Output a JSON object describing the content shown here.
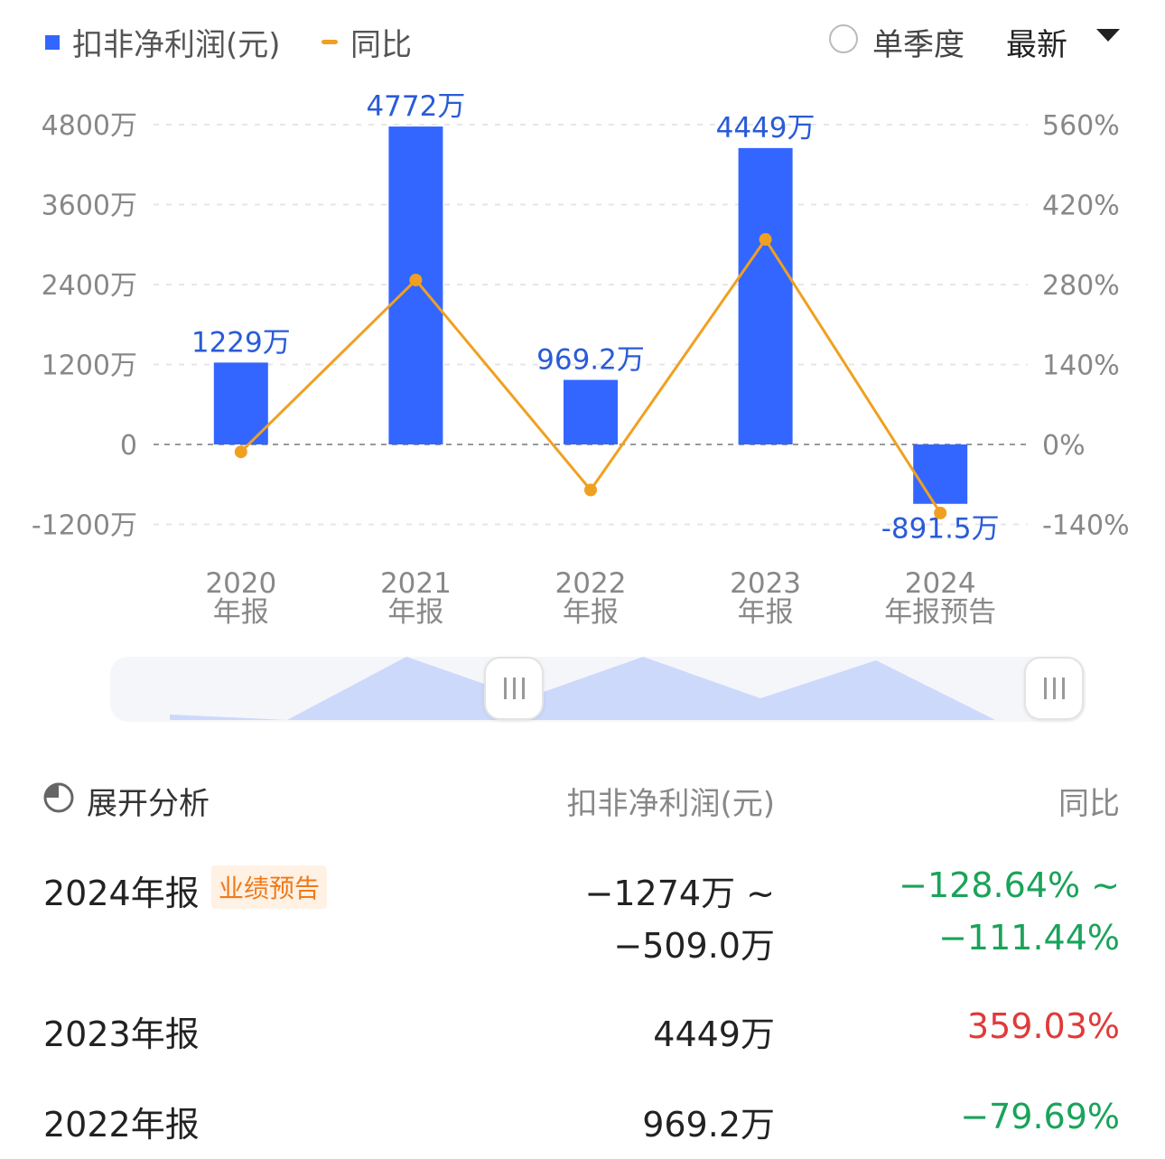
{
  "legend": {
    "bar_label": "扣非净利润(元)",
    "line_label": "同比",
    "bar_color": "#3366ff",
    "line_color": "#f0a020"
  },
  "controls": {
    "radio_label": "单季度",
    "radio_checked": false,
    "dropdown_value": "最新"
  },
  "chart_data": {
    "type": "bar",
    "categories": [
      [
        "2020",
        "年报"
      ],
      [
        "2021",
        "年报"
      ],
      [
        "2022",
        "年报"
      ],
      [
        "2023",
        "年报"
      ],
      [
        "2024",
        "年报预告"
      ]
    ],
    "series": [
      {
        "type": "bar",
        "axis": "left",
        "values": [
          1229,
          4772,
          969.2,
          4449,
          -891.5
        ],
        "data_labels": [
          "1229万",
          "4772万",
          "969.2万",
          "4449万",
          "-891.5万"
        ]
      },
      {
        "type": "line",
        "axis": "right",
        "values": [
          -13,
          288,
          -79.69,
          359.03,
          -120.04
        ]
      }
    ],
    "y_left": {
      "ticks": [
        4800,
        3600,
        2400,
        1200,
        0,
        -1200
      ],
      "tick_labels": [
        "4800万",
        "3600万",
        "2400万",
        "1200万",
        "0",
        "-1200万"
      ],
      "range": [
        -1200,
        4800
      ]
    },
    "y_right": {
      "ticks": [
        560,
        420,
        280,
        140,
        0,
        -140
      ],
      "tick_labels": [
        "560%",
        "420%",
        "280%",
        "140%",
        "0%",
        "-140%"
      ],
      "range": [
        -140,
        560
      ]
    },
    "grid": true
  },
  "table": {
    "expand_label": "展开分析",
    "col_value": "扣非净利润(元)",
    "col_yoy": "同比",
    "rows": [
      {
        "label": "2024年报",
        "tag": "业绩预告",
        "value_line1": "−1274万 ~",
        "value_line2": "−509.0万",
        "yoy_line1": "−128.64% ~",
        "yoy_line2": "−111.44%"
      },
      {
        "label": "2023年报",
        "value": "4449万",
        "yoy": "359.03%"
      },
      {
        "label": "2022年报",
        "value": "969.2万",
        "yoy": "−79.69%"
      }
    ]
  }
}
